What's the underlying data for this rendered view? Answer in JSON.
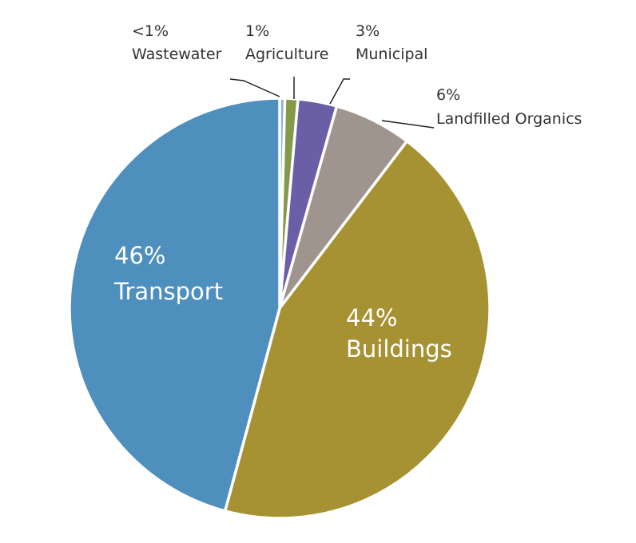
{
  "chart_data": {
    "type": "pie",
    "categories": [
      "Wastewater",
      "Agriculture",
      "Municipal",
      "Landfilled Organics",
      "Buildings",
      "Transport"
    ],
    "values": [
      0.4,
      1,
      3,
      6,
      44,
      46
    ],
    "value_labels": [
      "<1%",
      "1%",
      "3%",
      "6%",
      "44%",
      "46%"
    ],
    "colors": [
      "#8fb0c9",
      "#84994a",
      "#6a5ea6",
      "#a0948e",
      "#a69232",
      "#4f8fbd"
    ]
  }
}
